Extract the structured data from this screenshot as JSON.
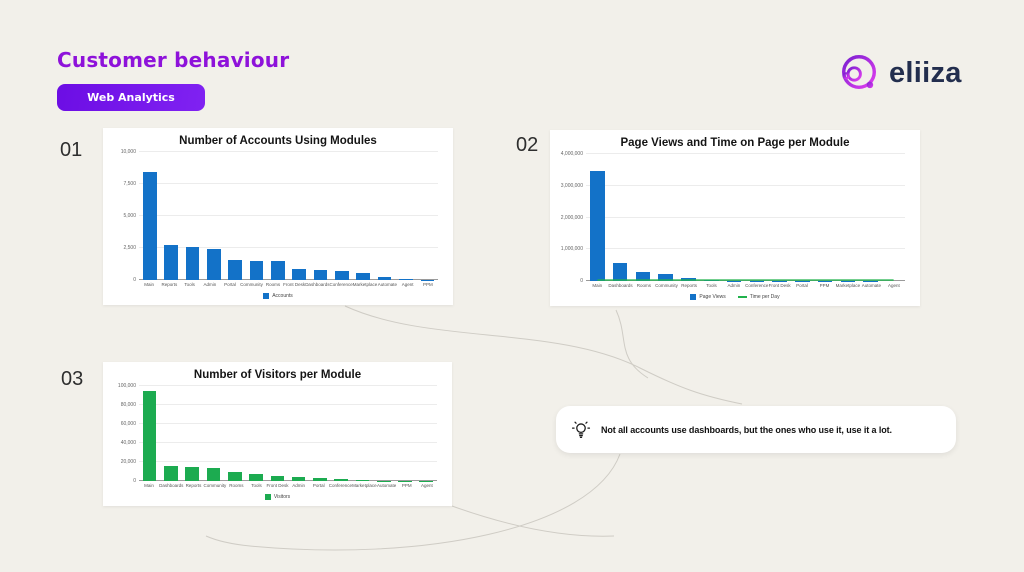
{
  "page": {
    "title": "Customer behaviour",
    "tag_label": "Web Analytics",
    "background": "#f2f0ea",
    "accent_purple": "#8e12da"
  },
  "logo": {
    "text": "eliiza",
    "ring_gradient_start": "#7a1fd0",
    "ring_gradient_end": "#e33ff0",
    "text_color": "#232e4e"
  },
  "note": {
    "icon": "lightbulb-icon",
    "text": "Not all accounts use dashboards, but the ones who use it, use it a lot."
  },
  "chart_data": [
    {
      "number": "01",
      "type": "bar",
      "title": "Number of Accounts Using Modules",
      "categories": [
        "Main",
        "Reports",
        "Tools",
        "Admin",
        "Portal",
        "Community",
        "Rooms",
        "Front Desk",
        "Dashboards",
        "Conference",
        "Marketplace",
        "Automate",
        "Agent",
        "PPM"
      ],
      "series": [
        {
          "name": "Accounts",
          "type": "bar",
          "color": "#1372c8",
          "values": [
            8400,
            2700,
            2550,
            2450,
            1600,
            1520,
            1480,
            850,
            780,
            680,
            520,
            200,
            60,
            20
          ]
        }
      ],
      "xlabel": "",
      "ylabel": "",
      "ylim": [
        0,
        10000
      ],
      "yticks": [
        0,
        2500,
        5000,
        7500,
        10000
      ],
      "grid": true,
      "legend_position": "bottom"
    },
    {
      "number": "02",
      "type": "bar",
      "title": "Page Views and Time on Page per Module",
      "categories": [
        "Main",
        "Dashboards",
        "Rooms",
        "Community",
        "Reports",
        "Tools",
        "Admin",
        "Conference",
        "Front Desk",
        "Portal",
        "PPM",
        "Marketplace",
        "Automate",
        "Agent"
      ],
      "series": [
        {
          "name": "Page Views",
          "type": "bar",
          "color": "#1372c8",
          "values": [
            3450000,
            580000,
            290000,
            220000,
            95000,
            30000,
            15000,
            12000,
            10000,
            9000,
            7000,
            6000,
            4000,
            2000
          ]
        },
        {
          "name": "Time per Day",
          "type": "line",
          "color": "#21b24c",
          "values": [
            30000,
            30000,
            30000,
            30000,
            30000,
            30000,
            30000,
            30000,
            30000,
            30000,
            30000,
            30000,
            30000,
            30000
          ]
        }
      ],
      "xlabel": "",
      "ylabel": "",
      "ylim": [
        0,
        4000000
      ],
      "yticks": [
        0,
        1000000,
        2000000,
        3000000,
        4000000
      ],
      "grid": true,
      "legend_position": "bottom"
    },
    {
      "number": "03",
      "type": "bar",
      "title": "Number of Visitors per Module",
      "categories": [
        "Main",
        "Dashboards",
        "Reports",
        "Community",
        "Rooms",
        "Tools",
        "Front Desk",
        "Admin",
        "Portal",
        "Conference",
        "Marketplace",
        "Automate",
        "PPM",
        "Agent"
      ],
      "series": [
        {
          "name": "Visitors",
          "type": "bar",
          "color": "#1cab50",
          "values": [
            95000,
            16000,
            15000,
            14000,
            10000,
            7000,
            5500,
            4000,
            3500,
            2000,
            1500,
            500,
            300,
            100
          ]
        }
      ],
      "xlabel": "",
      "ylabel": "",
      "ylim": [
        0,
        100000
      ],
      "yticks": [
        0,
        20000,
        40000,
        60000,
        80000,
        100000
      ],
      "grid": true,
      "legend_position": "bottom"
    }
  ]
}
